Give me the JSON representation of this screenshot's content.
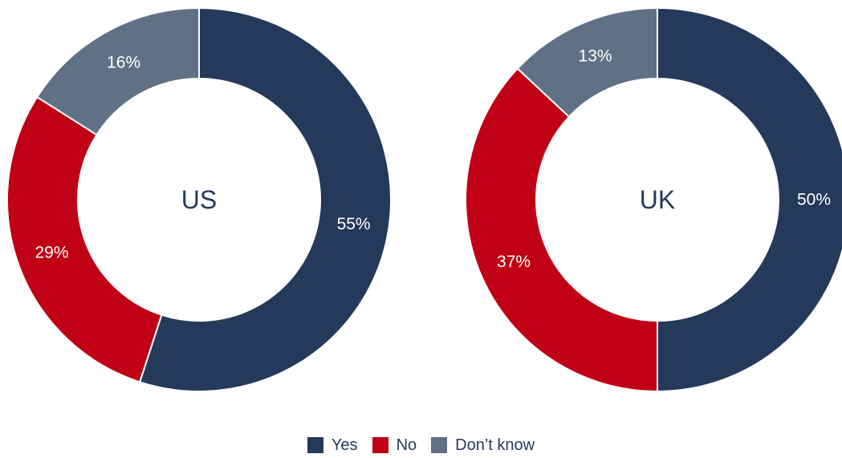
{
  "chart_data": {
    "type": "pie",
    "style": "donut",
    "categories": [
      "Yes",
      "No",
      "Don’t know"
    ],
    "colors": [
      "#25395a",
      "#c00015",
      "#607186"
    ],
    "legend": {
      "position": "bottom-center",
      "items": [
        {
          "label": "Yes",
          "color": "#25395a"
        },
        {
          "label": "No",
          "color": "#c00015"
        },
        {
          "label": "Don’t know",
          "color": "#607186"
        }
      ]
    },
    "charts": [
      {
        "center_label": "US",
        "values": [
          55,
          29,
          16
        ],
        "value_labels": [
          "55%",
          "29%",
          "16%"
        ]
      },
      {
        "center_label": "UK",
        "values": [
          50,
          37,
          13
        ],
        "value_labels": [
          "50%",
          "37%",
          "13%"
        ]
      }
    ]
  }
}
